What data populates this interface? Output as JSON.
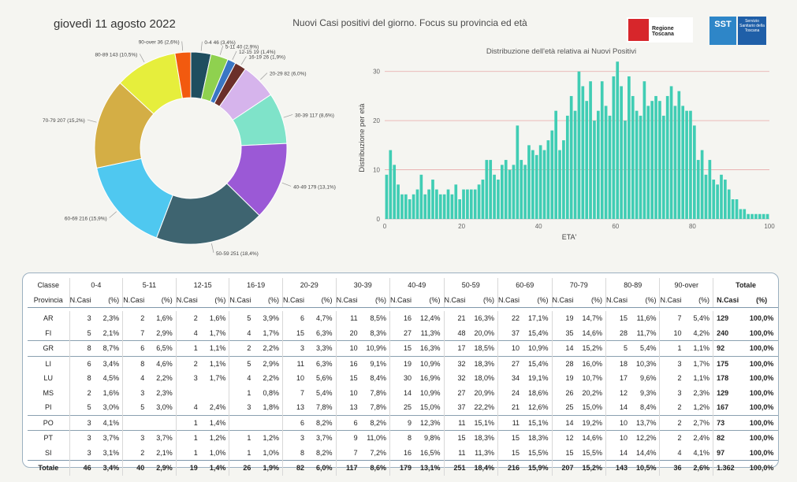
{
  "header": {
    "date": "giovedì 11 agosto 2022",
    "title": "Nuovi Casi positivi del giorno. Focus su provincia ed età",
    "logo_rt_text": "Regione Toscana",
    "logo_sst_mark": "SST",
    "logo_sst_text": "Servizio Sanitario della Toscana"
  },
  "donut": {
    "type": "pie",
    "slices": [
      {
        "label": "0-4 46 (3,4%)",
        "value": 46,
        "color": "#1f4e5f"
      },
      {
        "label": "5-11 40 (2,9%)",
        "value": 40,
        "color": "#8fd14f"
      },
      {
        "label": "12-15 19 (1,4%)",
        "value": 19,
        "color": "#3a76c4"
      },
      {
        "label": "16-19 26 (1,9%)",
        "value": 26,
        "color": "#6b2f2a"
      },
      {
        "label": "20-29 82 (6,0%)",
        "value": 82,
        "color": "#d6b4ec"
      },
      {
        "label": "30-39 117 (8,6%)",
        "value": 117,
        "color": "#7fe3c9"
      },
      {
        "label": "40-49 179 (13,1%)",
        "value": 179,
        "color": "#9b59d6"
      },
      {
        "label": "50-59 251 (18,4%)",
        "value": 251,
        "color": "#3e6470"
      },
      {
        "label": "60-69 216 (15,9%)",
        "value": 216,
        "color": "#4fc8f0"
      },
      {
        "label": "70-79 207 (15,2%)",
        "value": 207,
        "color": "#d4ae45"
      },
      {
        "label": "80-89 143 (10,5%)",
        "value": 143,
        "color": "#e6ee3c"
      },
      {
        "label": "90-over 36 (2,6%)",
        "value": 36,
        "color": "#f25a0f"
      }
    ]
  },
  "chart_data": {
    "type": "bar",
    "title": "Distribuzione dell'età relativa ai Nuovi Positivi",
    "xlabel": "ETA'",
    "ylabel": "Distribuzione per età",
    "xlim": [
      0,
      100
    ],
    "ylim": [
      0,
      33
    ],
    "xticks": [
      "0",
      "20",
      "40",
      "60",
      "80",
      "100"
    ],
    "yticks": [
      "0",
      "10",
      "20",
      "30"
    ],
    "color": "#40cdb4",
    "x": [
      0,
      1,
      2,
      3,
      4,
      5,
      6,
      7,
      8,
      9,
      10,
      11,
      12,
      13,
      14,
      15,
      16,
      17,
      18,
      19,
      20,
      21,
      22,
      23,
      24,
      25,
      26,
      27,
      28,
      29,
      30,
      31,
      32,
      33,
      34,
      35,
      36,
      37,
      38,
      39,
      40,
      41,
      42,
      43,
      44,
      45,
      46,
      47,
      48,
      49,
      50,
      51,
      52,
      53,
      54,
      55,
      56,
      57,
      58,
      59,
      60,
      61,
      62,
      63,
      64,
      65,
      66,
      67,
      68,
      69,
      70,
      71,
      72,
      73,
      74,
      75,
      76,
      77,
      78,
      79,
      80,
      81,
      82,
      83,
      84,
      85,
      86,
      87,
      88,
      89,
      90,
      91,
      92,
      93,
      94,
      95,
      96,
      97,
      98,
      99
    ],
    "values": [
      9,
      14,
      11,
      7,
      5,
      5,
      4,
      5,
      6,
      9,
      5,
      6,
      8,
      6,
      5,
      5,
      6,
      5,
      7,
      4,
      6,
      6,
      6,
      6,
      7,
      8,
      12,
      12,
      9,
      8,
      11,
      12,
      10,
      11,
      19,
      12,
      11,
      15,
      14,
      13,
      15,
      14,
      16,
      18,
      22,
      14,
      16,
      21,
      25,
      22,
      30,
      27,
      24,
      28,
      20,
      22,
      28,
      23,
      21,
      29,
      32,
      27,
      20,
      29,
      25,
      22,
      21,
      28,
      23,
      24,
      25,
      24,
      21,
      25,
      27,
      23,
      26,
      23,
      22,
      22,
      19,
      12,
      14,
      9,
      12,
      8,
      7,
      9,
      8,
      6,
      4,
      4,
      2,
      2,
      1,
      1,
      1,
      1,
      1,
      1
    ]
  },
  "table": {
    "header_label": "Classe",
    "province_label": "Provincia",
    "classes": [
      "0-4",
      "5-11",
      "12-15",
      "16-19",
      "20-29",
      "30-39",
      "40-49",
      "50-59",
      "60-69",
      "70-79",
      "80-89",
      "90-over"
    ],
    "total_label": "Totale",
    "sub_n": "N.Casi",
    "sub_p": "(%)",
    "rows": [
      {
        "prov": "AR",
        "cells": [
          [
            "3",
            "2,3%"
          ],
          [
            "2",
            "1,6%"
          ],
          [
            "2",
            "1,6%"
          ],
          [
            "5",
            "3,9%"
          ],
          [
            "6",
            "4,7%"
          ],
          [
            "11",
            "8,5%"
          ],
          [
            "16",
            "12,4%"
          ],
          [
            "21",
            "16,3%"
          ],
          [
            "22",
            "17,1%"
          ],
          [
            "19",
            "14,7%"
          ],
          [
            "15",
            "11,6%"
          ],
          [
            "7",
            "5,4%"
          ]
        ],
        "tot": [
          "129",
          "100,0%"
        ]
      },
      {
        "prov": "FI",
        "cells": [
          [
            "5",
            "2,1%"
          ],
          [
            "7",
            "2,9%"
          ],
          [
            "4",
            "1,7%"
          ],
          [
            "4",
            "1,7%"
          ],
          [
            "15",
            "6,3%"
          ],
          [
            "20",
            "8,3%"
          ],
          [
            "27",
            "11,3%"
          ],
          [
            "48",
            "20,0%"
          ],
          [
            "37",
            "15,4%"
          ],
          [
            "35",
            "14,6%"
          ],
          [
            "28",
            "11,7%"
          ],
          [
            "10",
            "4,2%"
          ]
        ],
        "tot": [
          "240",
          "100,0%"
        ]
      },
      {
        "prov": "GR",
        "cells": [
          [
            "8",
            "8,7%"
          ],
          [
            "6",
            "6,5%"
          ],
          [
            "1",
            "1,1%"
          ],
          [
            "2",
            "2,2%"
          ],
          [
            "3",
            "3,3%"
          ],
          [
            "10",
            "10,9%"
          ],
          [
            "15",
            "16,3%"
          ],
          [
            "17",
            "18,5%"
          ],
          [
            "10",
            "10,9%"
          ],
          [
            "14",
            "15,2%"
          ],
          [
            "5",
            "5,4%"
          ],
          [
            "1",
            "1,1%"
          ]
        ],
        "tot": [
          "92",
          "100,0%"
        ]
      },
      {
        "prov": "LI",
        "cells": [
          [
            "6",
            "3,4%"
          ],
          [
            "8",
            "4,6%"
          ],
          [
            "2",
            "1,1%"
          ],
          [
            "5",
            "2,9%"
          ],
          [
            "11",
            "6,3%"
          ],
          [
            "16",
            "9,1%"
          ],
          [
            "19",
            "10,9%"
          ],
          [
            "32",
            "18,3%"
          ],
          [
            "27",
            "15,4%"
          ],
          [
            "28",
            "16,0%"
          ],
          [
            "18",
            "10,3%"
          ],
          [
            "3",
            "1,7%"
          ]
        ],
        "tot": [
          "175",
          "100,0%"
        ]
      },
      {
        "prov": "LU",
        "cells": [
          [
            "8",
            "4,5%"
          ],
          [
            "4",
            "2,2%"
          ],
          [
            "3",
            "1,7%"
          ],
          [
            "4",
            "2,2%"
          ],
          [
            "10",
            "5,6%"
          ],
          [
            "15",
            "8,4%"
          ],
          [
            "30",
            "16,9%"
          ],
          [
            "32",
            "18,0%"
          ],
          [
            "34",
            "19,1%"
          ],
          [
            "19",
            "10,7%"
          ],
          [
            "17",
            "9,6%"
          ],
          [
            "2",
            "1,1%"
          ]
        ],
        "tot": [
          "178",
          "100,0%"
        ]
      },
      {
        "prov": "MS",
        "cells": [
          [
            "2",
            "1,6%"
          ],
          [
            "3",
            "2,3%"
          ],
          [
            "",
            ""
          ],
          [
            "1",
            "0,8%"
          ],
          [
            "7",
            "5,4%"
          ],
          [
            "10",
            "7,8%"
          ],
          [
            "14",
            "10,9%"
          ],
          [
            "27",
            "20,9%"
          ],
          [
            "24",
            "18,6%"
          ],
          [
            "26",
            "20,2%"
          ],
          [
            "12",
            "9,3%"
          ],
          [
            "3",
            "2,3%"
          ]
        ],
        "tot": [
          "129",
          "100,0%"
        ]
      },
      {
        "prov": "PI",
        "cells": [
          [
            "5",
            "3,0%"
          ],
          [
            "5",
            "3,0%"
          ],
          [
            "4",
            "2,4%"
          ],
          [
            "3",
            "1,8%"
          ],
          [
            "13",
            "7,8%"
          ],
          [
            "13",
            "7,8%"
          ],
          [
            "25",
            "15,0%"
          ],
          [
            "37",
            "22,2%"
          ],
          [
            "21",
            "12,6%"
          ],
          [
            "25",
            "15,0%"
          ],
          [
            "14",
            "8,4%"
          ],
          [
            "2",
            "1,2%"
          ]
        ],
        "tot": [
          "167",
          "100,0%"
        ]
      },
      {
        "prov": "PO",
        "cells": [
          [
            "3",
            "4,1%"
          ],
          [
            "",
            ""
          ],
          [
            "1",
            "1,4%"
          ],
          [
            "",
            ""
          ],
          [
            "6",
            "8,2%"
          ],
          [
            "6",
            "8,2%"
          ],
          [
            "9",
            "12,3%"
          ],
          [
            "11",
            "15,1%"
          ],
          [
            "11",
            "15,1%"
          ],
          [
            "14",
            "19,2%"
          ],
          [
            "10",
            "13,7%"
          ],
          [
            "2",
            "2,7%"
          ]
        ],
        "tot": [
          "73",
          "100,0%"
        ]
      },
      {
        "prov": "PT",
        "cells": [
          [
            "3",
            "3,7%"
          ],
          [
            "3",
            "3,7%"
          ],
          [
            "1",
            "1,2%"
          ],
          [
            "1",
            "1,2%"
          ],
          [
            "3",
            "3,7%"
          ],
          [
            "9",
            "11,0%"
          ],
          [
            "8",
            "9,8%"
          ],
          [
            "15",
            "18,3%"
          ],
          [
            "15",
            "18,3%"
          ],
          [
            "12",
            "14,6%"
          ],
          [
            "10",
            "12,2%"
          ],
          [
            "2",
            "2,4%"
          ]
        ],
        "tot": [
          "82",
          "100,0%"
        ]
      },
      {
        "prov": "SI",
        "cells": [
          [
            "3",
            "3,1%"
          ],
          [
            "2",
            "2,1%"
          ],
          [
            "1",
            "1,0%"
          ],
          [
            "1",
            "1,0%"
          ],
          [
            "8",
            "8,2%"
          ],
          [
            "7",
            "7,2%"
          ],
          [
            "16",
            "16,5%"
          ],
          [
            "11",
            "11,3%"
          ],
          [
            "15",
            "15,5%"
          ],
          [
            "15",
            "15,5%"
          ],
          [
            "14",
            "14,4%"
          ],
          [
            "4",
            "4,1%"
          ]
        ],
        "tot": [
          "97",
          "100,0%"
        ]
      }
    ],
    "total_row": {
      "prov": "Totale",
      "cells": [
        [
          "46",
          "3,4%"
        ],
        [
          "40",
          "2,9%"
        ],
        [
          "19",
          "1,4%"
        ],
        [
          "26",
          "1,9%"
        ],
        [
          "82",
          "6,0%"
        ],
        [
          "117",
          "8,6%"
        ],
        [
          "179",
          "13,1%"
        ],
        [
          "251",
          "18,4%"
        ],
        [
          "216",
          "15,9%"
        ],
        [
          "207",
          "15,2%"
        ],
        [
          "143",
          "10,5%"
        ],
        [
          "36",
          "2,6%"
        ]
      ],
      "tot": [
        "1.362",
        "100,0%"
      ]
    }
  }
}
